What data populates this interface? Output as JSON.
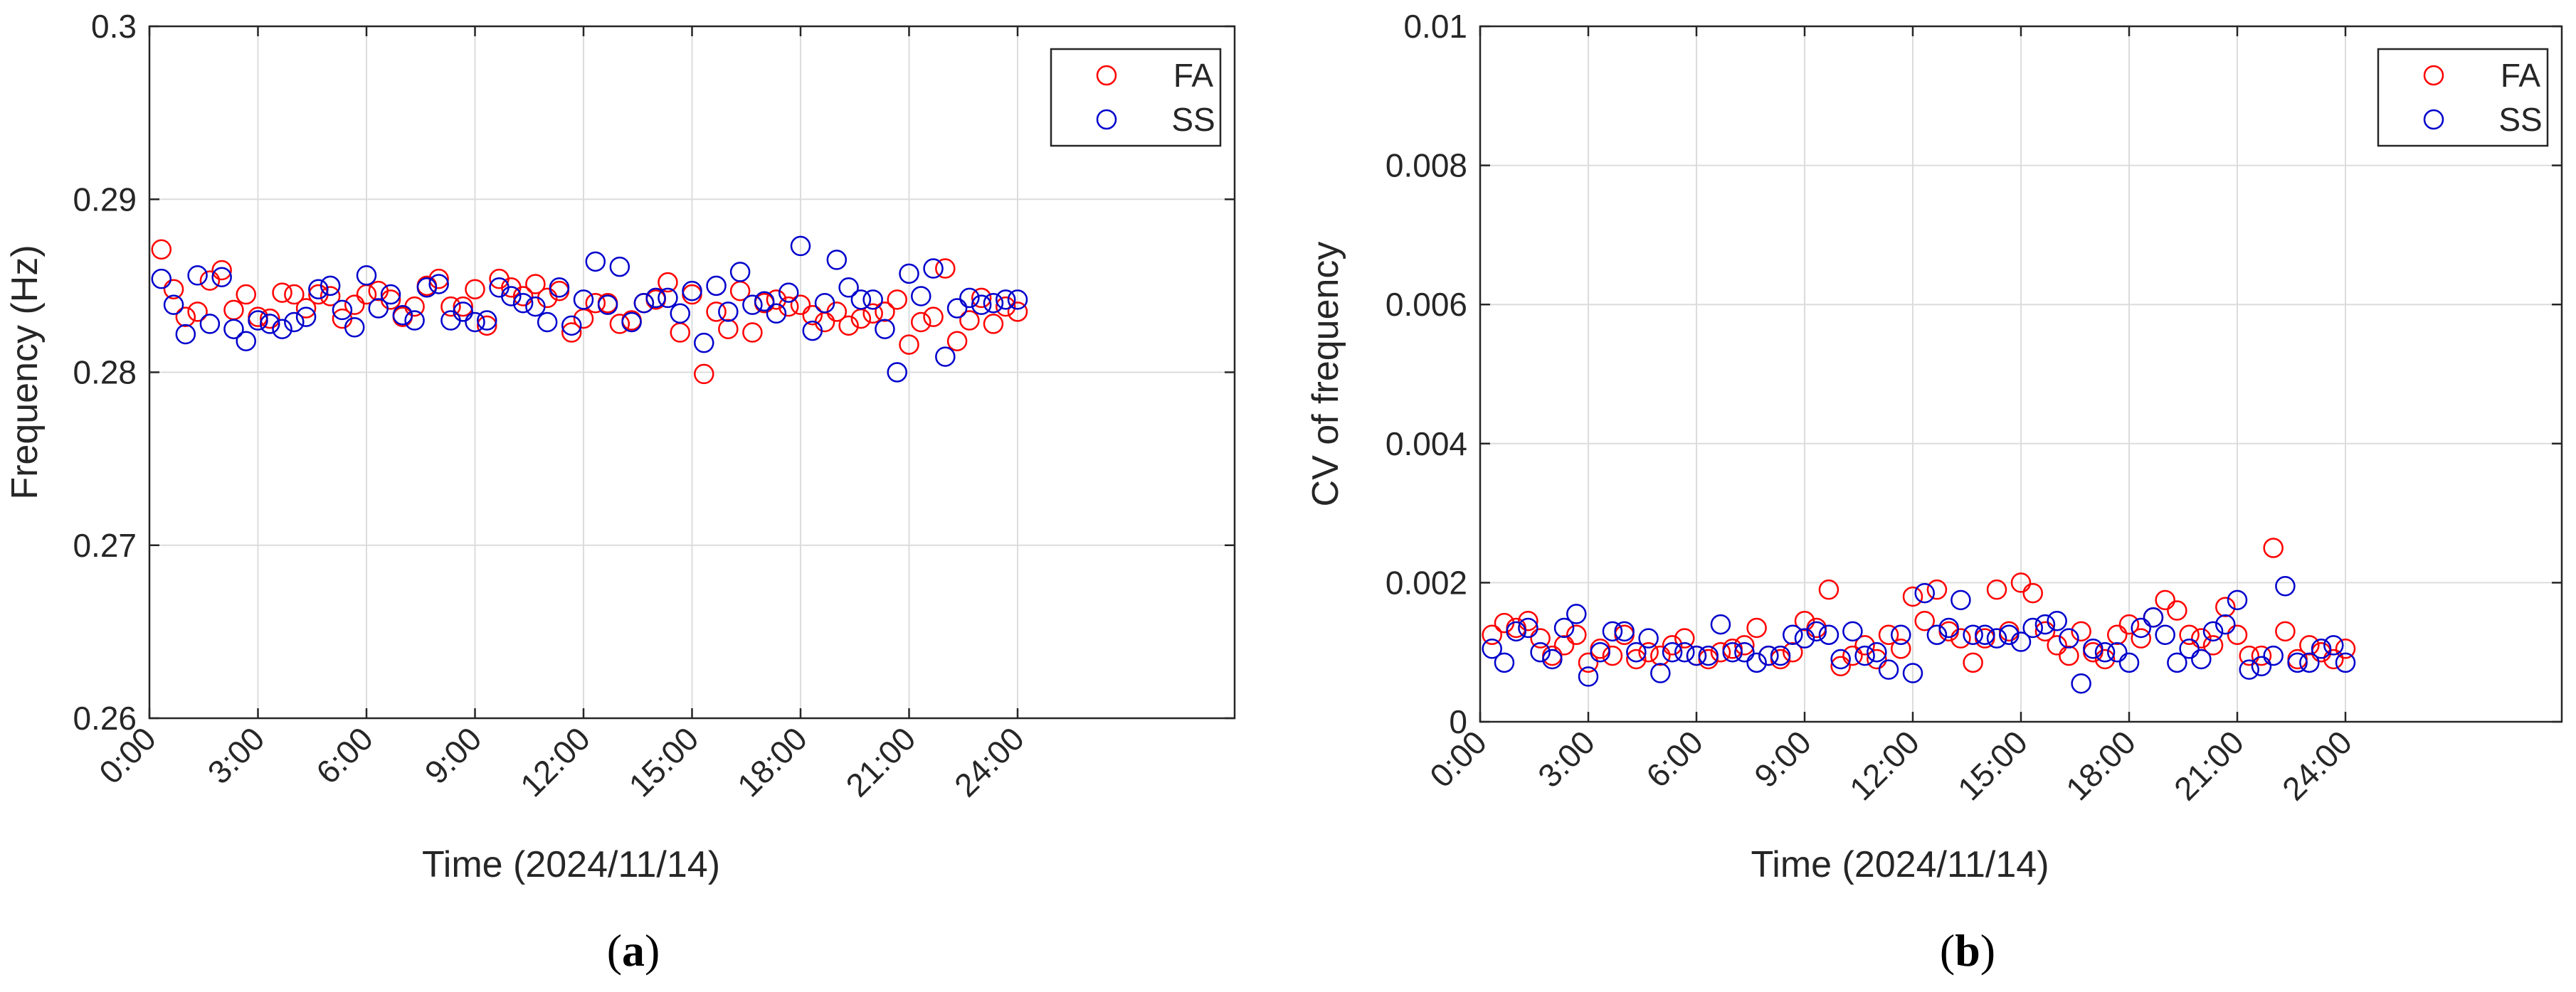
{
  "colors": {
    "FA": "#ff0000",
    "SS": "#0000cc",
    "grid": "#dcdcdc",
    "axis": "#262626"
  },
  "chart_data": [
    {
      "type": "scatter",
      "caption_open": "(",
      "caption_letter": "a",
      "caption_close": ")",
      "xlabel": "Time (2024/11/14)",
      "ylabel": "Frequency (Hz)",
      "xlim": [
        0,
        30
      ],
      "ylim": [
        0.26,
        0.3
      ],
      "xticks": [
        0,
        3,
        6,
        9,
        12,
        15,
        18,
        21,
        24
      ],
      "xtick_labels": [
        "0:00",
        "3:00",
        "6:00",
        "9:00",
        "12:00",
        "15:00",
        "18:00",
        "21:00",
        "24:00"
      ],
      "yticks": [
        0.26,
        0.27,
        0.28,
        0.29,
        0.3
      ],
      "ytick_labels": [
        "0.26",
        "0.27",
        "0.28",
        "0.29",
        "0.3"
      ],
      "grid": true,
      "legend_position": "top-right",
      "series": [
        {
          "name": "FA",
          "x": [
            0.33,
            0.67,
            1,
            1.33,
            1.67,
            2,
            2.33,
            2.67,
            3,
            3.33,
            3.67,
            4,
            4.33,
            4.67,
            5,
            5.33,
            5.67,
            6,
            6.33,
            6.67,
            7,
            7.33,
            7.67,
            8,
            8.33,
            8.67,
            9,
            9.33,
            9.67,
            10,
            10.33,
            10.67,
            11,
            11.33,
            11.67,
            12,
            12.33,
            12.67,
            13,
            13.33,
            13.67,
            14,
            14.33,
            14.67,
            15,
            15.33,
            15.67,
            16,
            16.33,
            16.67,
            17,
            17.33,
            17.67,
            18,
            18.33,
            18.67,
            19,
            19.33,
            19.67,
            20,
            20.33,
            20.67,
            21,
            21.33,
            21.67,
            22,
            22.33,
            22.67,
            23,
            23.33,
            23.67,
            24
          ],
          "y": [
            0.2871,
            0.2848,
            0.2832,
            0.2835,
            0.2853,
            0.2859,
            0.2836,
            0.2845,
            0.2832,
            0.2831,
            0.2846,
            0.2845,
            0.2837,
            0.2845,
            0.2844,
            0.2831,
            0.2839,
            0.2845,
            0.2847,
            0.2842,
            0.2832,
            0.2838,
            0.285,
            0.2854,
            0.2838,
            0.2838,
            0.2848,
            0.2827,
            0.2854,
            0.2849,
            0.2844,
            0.2851,
            0.2843,
            0.2847,
            0.2823,
            0.2831,
            0.284,
            0.284,
            0.2828,
            0.283,
            0.284,
            0.2842,
            0.2852,
            0.2823,
            0.2845,
            0.2799,
            0.2835,
            0.2825,
            0.2847,
            0.2823,
            0.284,
            0.2842,
            0.2838,
            0.2839,
            0.2833,
            0.2829,
            0.2835,
            0.2827,
            0.2831,
            0.2834,
            0.2835,
            0.2842,
            0.2816,
            0.2829,
            0.2832,
            0.286,
            0.2818,
            0.283,
            0.2843,
            0.2828,
            0.2838,
            0.2835
          ]
        },
        {
          "name": "SS",
          "x": [
            0.33,
            0.67,
            1,
            1.33,
            1.67,
            2,
            2.33,
            2.67,
            3,
            3.33,
            3.67,
            4,
            4.33,
            4.67,
            5,
            5.33,
            5.67,
            6,
            6.33,
            6.67,
            7,
            7.33,
            7.67,
            8,
            8.33,
            8.67,
            9,
            9.33,
            9.67,
            10,
            10.33,
            10.67,
            11,
            11.33,
            11.67,
            12,
            12.33,
            12.67,
            13,
            13.33,
            13.67,
            14,
            14.33,
            14.67,
            15,
            15.33,
            15.67,
            16,
            16.33,
            16.67,
            17,
            17.33,
            17.67,
            18,
            18.33,
            18.67,
            19,
            19.33,
            19.67,
            20,
            20.33,
            20.67,
            21,
            21.33,
            21.67,
            22,
            22.33,
            22.67,
            23,
            23.33,
            23.67,
            24
          ],
          "y": [
            0.2854,
            0.2839,
            0.2822,
            0.2856,
            0.2828,
            0.2855,
            0.2825,
            0.2818,
            0.283,
            0.2828,
            0.2825,
            0.2829,
            0.2832,
            0.2848,
            0.285,
            0.2836,
            0.2826,
            0.2856,
            0.2837,
            0.2845,
            0.2833,
            0.283,
            0.2849,
            0.2851,
            0.283,
            0.2835,
            0.2829,
            0.283,
            0.2849,
            0.2844,
            0.284,
            0.2838,
            0.2829,
            0.2849,
            0.2827,
            0.2842,
            0.2864,
            0.2839,
            0.2861,
            0.2829,
            0.284,
            0.2843,
            0.2843,
            0.2834,
            0.2847,
            0.2817,
            0.285,
            0.2835,
            0.2858,
            0.2839,
            0.2841,
            0.2834,
            0.2846,
            0.2873,
            0.2824,
            0.284,
            0.2865,
            0.2849,
            0.2842,
            0.2842,
            0.2825,
            0.28,
            0.2857,
            0.2844,
            0.286,
            0.2809,
            0.2837,
            0.2843,
            0.2839,
            0.284,
            0.2842,
            0.2842
          ]
        }
      ]
    },
    {
      "type": "scatter",
      "caption_open": "(",
      "caption_letter": "b",
      "caption_close": ")",
      "xlabel": "Time (2024/11/14)",
      "ylabel": "CV of  frequency",
      "xlim": [
        0,
        30
      ],
      "ylim": [
        0,
        0.01
      ],
      "xticks": [
        0,
        3,
        6,
        9,
        12,
        15,
        18,
        21,
        24
      ],
      "xtick_labels": [
        "0:00",
        "3:00",
        "6:00",
        "9:00",
        "12:00",
        "15:00",
        "18:00",
        "21:00",
        "24:00"
      ],
      "yticks": [
        0,
        0.002,
        0.004,
        0.006,
        0.008,
        0.01
      ],
      "ytick_labels": [
        "0",
        "0.002",
        "0.004",
        "0.006",
        "0.008",
        "0.01"
      ],
      "grid": true,
      "legend_position": "top-right",
      "series": [
        {
          "name": "FA",
          "x": [
            0.33,
            0.67,
            1,
            1.33,
            1.67,
            2,
            2.33,
            2.67,
            3,
            3.33,
            3.67,
            4,
            4.33,
            4.67,
            5,
            5.33,
            5.67,
            6,
            6.33,
            6.67,
            7,
            7.33,
            7.67,
            8,
            8.33,
            8.67,
            9,
            9.33,
            9.67,
            10,
            10.33,
            10.67,
            11,
            11.33,
            11.67,
            12,
            12.33,
            12.67,
            13,
            13.33,
            13.67,
            14,
            14.33,
            14.67,
            15,
            15.33,
            15.67,
            16,
            16.33,
            16.67,
            17,
            17.33,
            17.67,
            18,
            18.33,
            18.67,
            19,
            19.33,
            19.67,
            20,
            20.33,
            20.67,
            21,
            21.33,
            21.67,
            22,
            22.33,
            22.67,
            23,
            23.33,
            23.67,
            24
          ],
          "y": [
            0.00125,
            0.00142,
            0.00135,
            0.00145,
            0.0012,
            0.00095,
            0.0011,
            0.00125,
            0.00085,
            0.00105,
            0.00095,
            0.00125,
            0.0009,
            0.001,
            0.00095,
            0.0011,
            0.0012,
            0.00095,
            0.0009,
            0.001,
            0.00105,
            0.0011,
            0.00135,
            0.00095,
            0.0009,
            0.001,
            0.00145,
            0.00135,
            0.0019,
            0.0008,
            0.00095,
            0.0011,
            0.0009,
            0.00125,
            0.00105,
            0.0018,
            0.00145,
            0.0019,
            0.0013,
            0.0012,
            0.00085,
            0.0012,
            0.0019,
            0.0013,
            0.002,
            0.00185,
            0.0013,
            0.0011,
            0.00095,
            0.0013,
            0.001,
            0.0009,
            0.00125,
            0.0014,
            0.0012,
            0.0015,
            0.00175,
            0.0016,
            0.00125,
            0.0012,
            0.0011,
            0.00165,
            0.00125,
            0.00095,
            0.00095,
            0.0025,
            0.0013,
            0.0009,
            0.0011,
            0.001,
            0.0009,
            0.00105
          ]
        },
        {
          "name": "SS",
          "x": [
            0.33,
            0.67,
            1,
            1.33,
            1.67,
            2,
            2.33,
            2.67,
            3,
            3.33,
            3.67,
            4,
            4.33,
            4.67,
            5,
            5.33,
            5.67,
            6,
            6.33,
            6.67,
            7,
            7.33,
            7.67,
            8,
            8.33,
            8.67,
            9,
            9.33,
            9.67,
            10,
            10.33,
            10.67,
            11,
            11.33,
            11.67,
            12,
            12.33,
            12.67,
            13,
            13.33,
            13.67,
            14,
            14.33,
            14.67,
            15,
            15.33,
            15.67,
            16,
            16.33,
            16.67,
            17,
            17.33,
            17.67,
            18,
            18.33,
            18.67,
            19,
            19.33,
            19.67,
            20,
            20.33,
            20.67,
            21,
            21.33,
            21.67,
            22,
            22.33,
            22.67,
            23,
            23.33,
            23.67,
            24
          ],
          "y": [
            0.00105,
            0.00085,
            0.0013,
            0.00135,
            0.001,
            0.0009,
            0.00135,
            0.00155,
            0.00065,
            0.001,
            0.0013,
            0.0013,
            0.001,
            0.0012,
            0.0007,
            0.001,
            0.001,
            0.00095,
            0.00095,
            0.0014,
            0.001,
            0.001,
            0.00085,
            0.00095,
            0.00095,
            0.00125,
            0.0012,
            0.0013,
            0.00125,
            0.0009,
            0.0013,
            0.00095,
            0.001,
            0.00075,
            0.00125,
            0.0007,
            0.00185,
            0.00125,
            0.00135,
            0.00175,
            0.00125,
            0.00125,
            0.0012,
            0.00125,
            0.00115,
            0.00135,
            0.0014,
            0.00145,
            0.0012,
            0.00055,
            0.00105,
            0.001,
            0.001,
            0.00085,
            0.00135,
            0.0015,
            0.00125,
            0.00085,
            0.00105,
            0.0009,
            0.0013,
            0.0014,
            0.00175,
            0.00075,
            0.0008,
            0.00095,
            0.00195,
            0.00085,
            0.00085,
            0.00105,
            0.0011,
            0.00085
          ]
        }
      ]
    }
  ]
}
